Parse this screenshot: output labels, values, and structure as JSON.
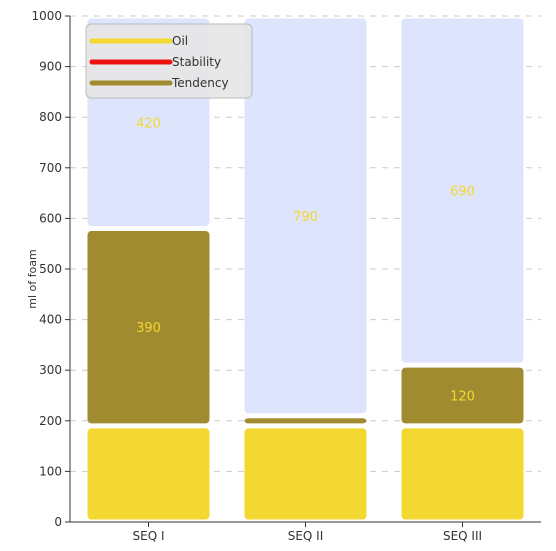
{
  "chart_data": {
    "type": "bar",
    "stacked": true,
    "categories": [
      "SEQ I",
      "SEQ II",
      "SEQ III"
    ],
    "series": [
      {
        "name": "Oil",
        "values": [
          190,
          190,
          190
        ],
        "color": "#f2d830",
        "show_labels": false
      },
      {
        "name": "Tendency",
        "values": [
          390,
          20,
          120
        ],
        "color": "#a08b30",
        "show_labels": true
      },
      {
        "name": "Stability",
        "values": [
          420,
          790,
          690
        ],
        "color": "#dde4fb",
        "show_labels": true
      }
    ],
    "legend": {
      "entries": [
        {
          "name": "Oil",
          "color": "#f2d830"
        },
        {
          "name": "Stability",
          "color": "#ee1111"
        },
        {
          "name": "Tendency",
          "color": "#a08b30"
        }
      ],
      "position": "top-left"
    },
    "data_label_color": "#f2d830",
    "ylabel": "ml of foam",
    "ylim": [
      0,
      1000
    ],
    "yticks": [
      0,
      100,
      200,
      300,
      400,
      500,
      600,
      700,
      800,
      900,
      1000
    ],
    "grid": true
  }
}
